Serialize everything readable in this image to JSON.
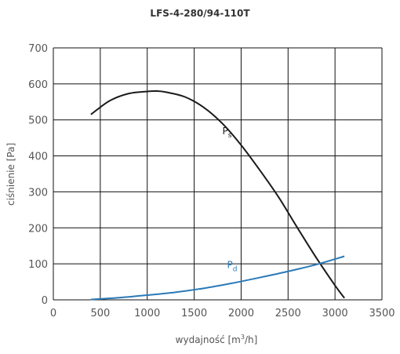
{
  "chart_data": {
    "type": "line",
    "title": "LFS-4-280/94-110T",
    "xlabel": "wydajność [m³/h]",
    "xlabel_parts": {
      "main": "wydajność [m",
      "sup": "3",
      "tail": "/h]"
    },
    "ylabel": "ciśnienie [Pa]",
    "xlim": [
      0,
      3500
    ],
    "ylim": [
      0,
      700
    ],
    "xticks": [
      0,
      500,
      1000,
      1500,
      2000,
      2500,
      3000,
      3500
    ],
    "yticks": [
      0,
      100,
      200,
      300,
      400,
      500,
      600,
      700
    ],
    "grid": true,
    "series": [
      {
        "name": "Ps",
        "label_main": "P",
        "label_sub": "s",
        "color": "#1a1a1a",
        "x": [
          400,
          600,
          800,
          1000,
          1100,
          1200,
          1400,
          1600,
          1800,
          2000,
          2200,
          2400,
          2600,
          2800,
          3000,
          3100
        ],
        "y": [
          515,
          553,
          573,
          579,
          580,
          577,
          564,
          535,
          490,
          430,
          360,
          285,
          200,
          117,
          40,
          5
        ]
      },
      {
        "name": "Pd",
        "label_main": "P",
        "label_sub": "d",
        "color": "#2a7ab8",
        "x": [
          400,
          700,
          1000,
          1300,
          1600,
          1900,
          2200,
          2500,
          2800,
          3100
        ],
        "y": [
          1,
          6,
          13,
          21,
          32,
          46,
          62,
          79,
          98,
          121
        ]
      }
    ]
  }
}
